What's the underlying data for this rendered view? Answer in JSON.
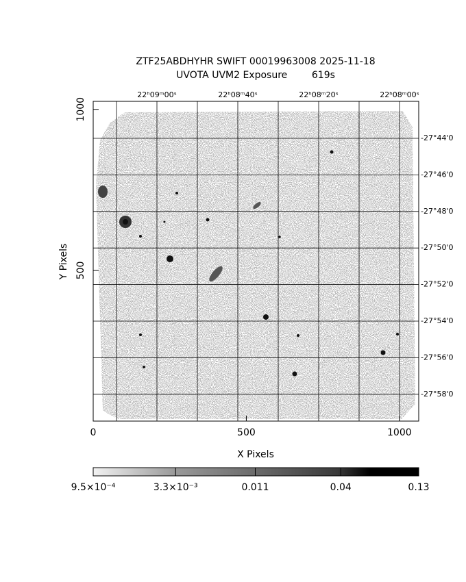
{
  "chart_data": {
    "type": "image",
    "title": "ZTF25ABDHYHR SWIFT 00019963008 2025-11-18",
    "subtitle": "UVOTA UVM2 Exposure        619s",
    "x_label": "X Pixels",
    "y_label": "Y Pixels",
    "xlim": [
      0,
      1063
    ],
    "xticks": [
      0,
      500,
      1000
    ],
    "ylim": [
      32,
      1025
    ],
    "yticks": [
      500,
      1000
    ],
    "ra_labels": [
      "22ʰ09ᵐ00ˢ",
      "22ʰ08ᵐ40ˢ",
      "22ʰ08ᵐ20ˢ",
      "22ʰ08ᵐ00ˢ"
    ],
    "dec_labels": [
      "-27°44'0",
      "-27°46'0",
      "-27°48'0",
      "-27°50'0",
      "-27°52'0",
      "-27°54'0",
      "-27°56'0",
      "-27°58'0"
    ],
    "grid": true,
    "colorbar": {
      "log": true,
      "lim": [
        0.00095,
        0.13
      ],
      "ticks": [
        {
          "value": 0.00095,
          "label": "9.5×10⁻⁴"
        },
        {
          "value": 0.0033,
          "label": "3.3×10⁻³"
        },
        0.011,
        0.04,
        0.13
      ]
    }
  }
}
